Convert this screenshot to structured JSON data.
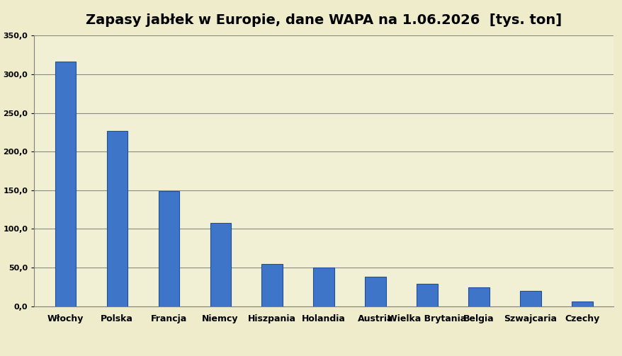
{
  "chart_data": {
    "type": "bar",
    "title": "Zapasy jabłek w Europie, dane WAPA na 1.06.2026  [tys. ton]",
    "categories": [
      "Włochy",
      "Polska",
      "Francja",
      "Niemcy",
      "Hiszpania",
      "Holandia",
      "Austria",
      "Wielka Brytania",
      "Belgia",
      "Szwajcaria",
      "Czechy"
    ],
    "values": [
      316,
      227,
      149,
      108,
      55,
      50,
      38,
      29,
      24,
      20,
      6
    ],
    "color": "#3f75c8",
    "ylim": [
      0,
      350
    ],
    "yticks": [
      {
        "value": 0,
        "label": "0,0"
      },
      {
        "value": 50,
        "label": "50,0"
      },
      {
        "value": 100,
        "label": "100,0"
      },
      {
        "value": 150,
        "label": "150,0"
      },
      {
        "value": 200,
        "label": "200,0"
      },
      {
        "value": 250,
        "label": "250,0"
      },
      {
        "value": 300,
        "label": "300,0"
      },
      {
        "value": 350,
        "label": "350,0"
      }
    ],
    "grid": true
  }
}
